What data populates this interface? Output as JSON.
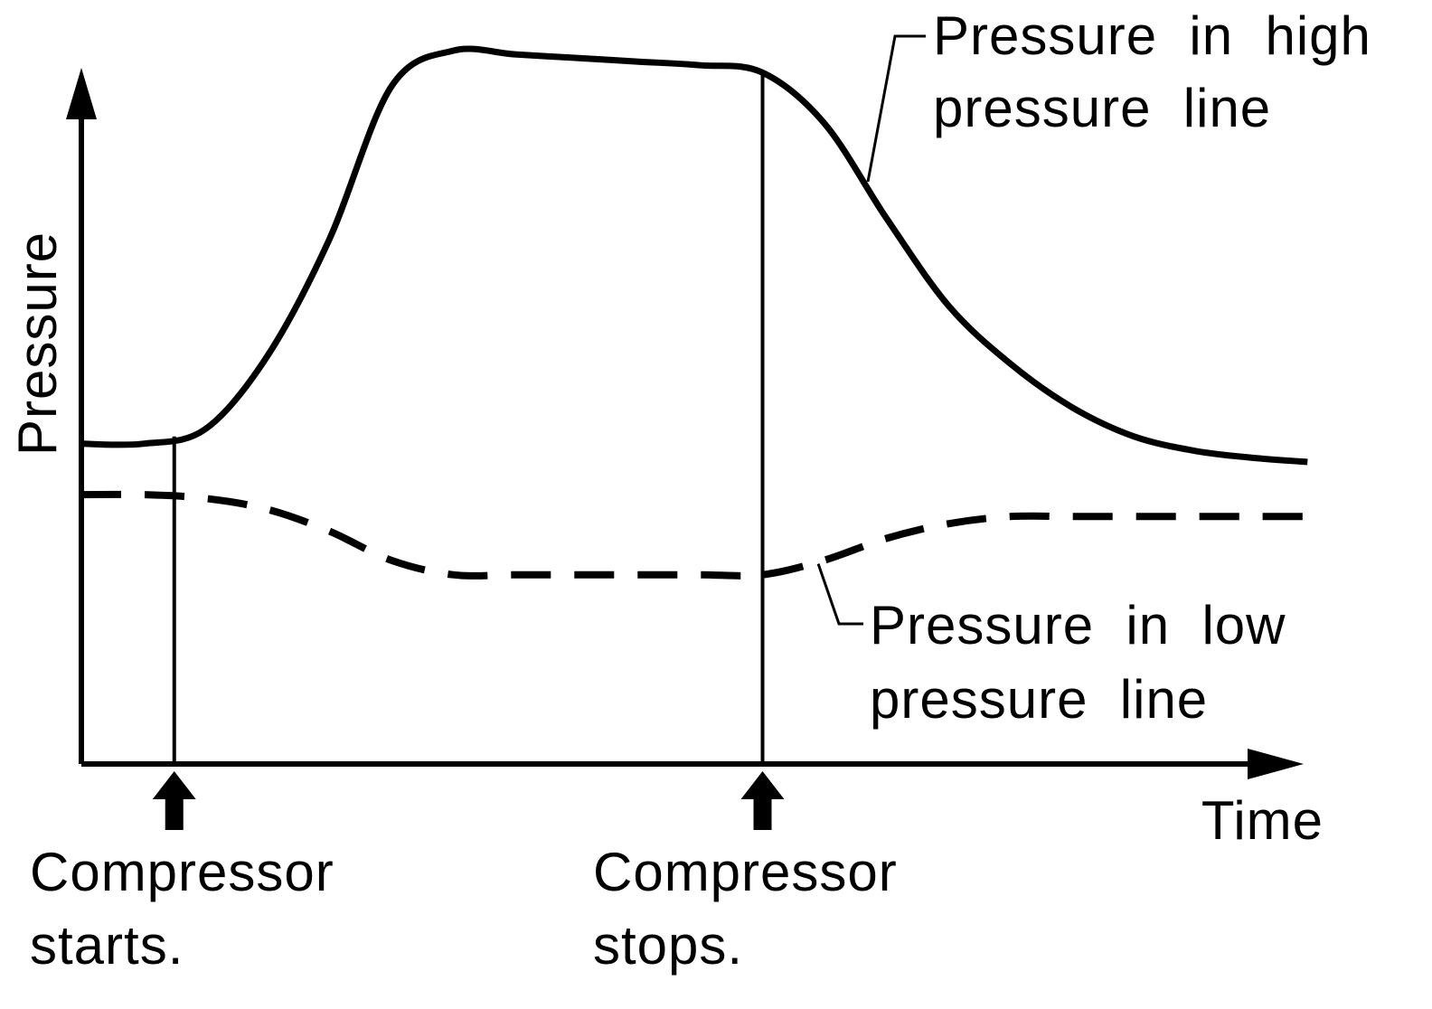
{
  "chart_data": {
    "type": "line",
    "title": "",
    "xlabel": "Time",
    "ylabel": "Pressure",
    "x_ticks": [],
    "y_ticks": [],
    "grid": false,
    "x_range": [
      0,
      100
    ],
    "y_range": [
      0,
      100
    ],
    "x": [
      0,
      5,
      10,
      15,
      20,
      25,
      30,
      35,
      40,
      45,
      50,
      55,
      60,
      65,
      70,
      75,
      80,
      85,
      90,
      95,
      99
    ],
    "series": [
      {
        "name": "Pressure in high pressure line",
        "style": "solid",
        "values": [
          44,
          44,
          46,
          56,
          72,
          93,
          98,
          97.5,
          97,
          96.5,
          96,
          95,
          88,
          75,
          63,
          55,
          49,
          45,
          43,
          42,
          41.5
        ]
      },
      {
        "name": "Pressure in low pressure line",
        "style": "dashed",
        "values": [
          37,
          37,
          36.5,
          35,
          32,
          28,
          26,
          26,
          26,
          26,
          26,
          26,
          28,
          31,
          33,
          34,
          34,
          34,
          34,
          34,
          34
        ]
      }
    ],
    "events": [
      {
        "label_line1": "Compressor",
        "label_line2": "starts.",
        "x": 7.5
      },
      {
        "label_line1": "Compressor",
        "label_line2": "stops.",
        "x": 55
      }
    ],
    "annotations": [
      {
        "series": 0,
        "line1": "Pressure  in  high",
        "line2": "pressure  line"
      },
      {
        "series": 1,
        "line1": "Pressure  in  low",
        "line2": "pressure  line"
      }
    ],
    "colors": {
      "ink": "#000000",
      "background": "#ffffff"
    }
  }
}
